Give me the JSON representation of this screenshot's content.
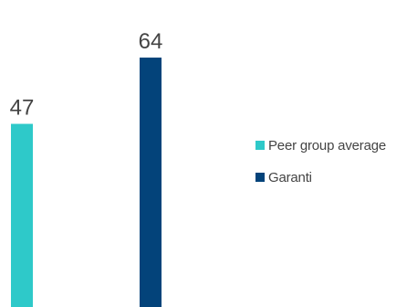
{
  "chart_data": {
    "type": "bar",
    "series": [
      {
        "name": "Peer group average",
        "value": 47,
        "color": "#2ec9c9"
      },
      {
        "name": "Garanti",
        "value": 64,
        "color": "#03437a"
      }
    ],
    "ylim": [
      0,
      70
    ],
    "legend_position": "right",
    "grid": false
  }
}
